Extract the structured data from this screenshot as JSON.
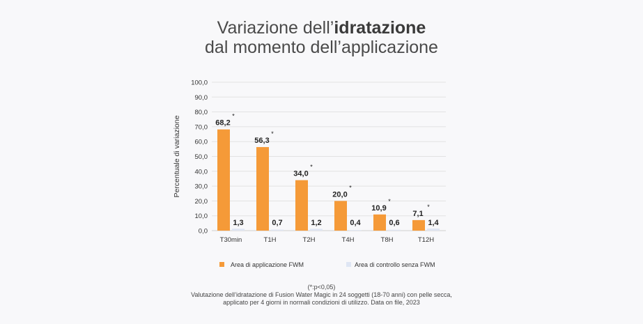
{
  "title": {
    "line1_prefix": "Variazione dell’",
    "line1_bold": "idratazione",
    "line2": "dal momento dell’applicazione"
  },
  "chart_data": {
    "type": "bar",
    "categories": [
      "T30min",
      "T1H",
      "T2H",
      "T4H",
      "T8H",
      "T12H"
    ],
    "series": [
      {
        "name": "Area di applicazione FWM",
        "values": [
          68.2,
          56.3,
          34.0,
          20.0,
          10.9,
          7.1
        ],
        "labels": [
          "68,2",
          "56,3",
          "34,0",
          "20,0",
          "10,9",
          "7,1"
        ],
        "color": "#f59a38",
        "significance": [
          "*",
          "*",
          "*",
          "*",
          "*",
          "*"
        ]
      },
      {
        "name": "Area di controllo senza FWM",
        "values": [
          1.3,
          0.7,
          1.2,
          0.4,
          0.6,
          1.4
        ],
        "labels": [
          "1,3",
          "0,7",
          "1,2",
          "0,4",
          "0,6",
          "1,4"
        ],
        "color": "#dfe6f4"
      }
    ],
    "ylabel": "Percentuale di variazione",
    "xlabel": "",
    "ylim": [
      0,
      100
    ],
    "yticks": [
      "0,0",
      "10,0",
      "20,0",
      "30,0",
      "40,0",
      "50,0",
      "60,0",
      "70,0",
      "80,0",
      "90,0",
      "100,0"
    ],
    "grid": true,
    "legend_position": "bottom"
  },
  "footnotes": {
    "significance": "(*:p<0,05)",
    "line1": "Valutazione dell’idratazione di Fusion Water Magic in 24 soggetti (18-70 anni) con pelle secca,",
    "line2": "applicato per 4 giorni in normali condizioni di utilizzo. Data on file, 2023"
  }
}
